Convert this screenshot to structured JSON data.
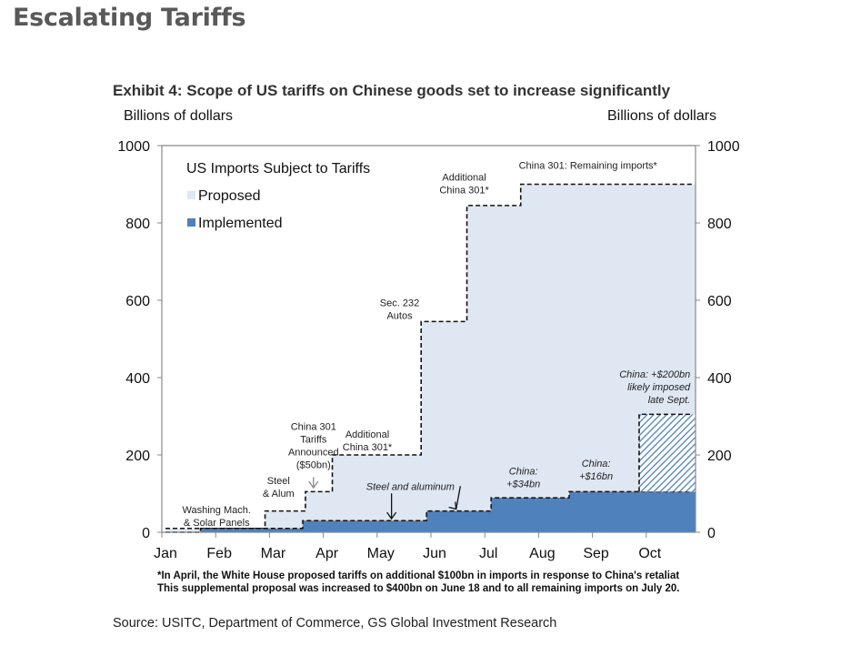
{
  "page": {
    "slide_title": "Escalating Tariffs",
    "footnote_line1": "*In  April, the White House proposed  tariffs on additional $100bn in imports in response to China's retaliat",
    "footnote_line2": "This supplemental proposal was increased to $400bn  on June 18 and to all remaining  imports on July 20.",
    "source": "Source: USITC, Department of Commerce, GS Global Investment Research"
  },
  "chart_data": {
    "type": "area",
    "title": "Exhibit 4: Scope of US tariffs on Chinese goods set to increase significantly",
    "ylabel_left": "Billions of dollars",
    "ylabel_right": "Billions of dollars",
    "xlabel": "",
    "ylim": [
      0,
      1000
    ],
    "yticks": [
      0,
      200,
      400,
      600,
      800,
      1000
    ],
    "x_ticks": [
      "Jan",
      "Feb",
      "Mar",
      "Apr",
      "May",
      "Jun",
      "Jul",
      "Aug",
      "Sep",
      "Oct"
    ],
    "x_range_months": [
      0,
      9.85
    ],
    "legend": {
      "title": "US Imports Subject to Tariffs",
      "position": "top-left",
      "entries": [
        {
          "name": "Proposed",
          "color": "#dfe7f2"
        },
        {
          "name": "Implemented",
          "color": "#4f81bd"
        }
      ]
    },
    "series": [
      {
        "name": "Proposed",
        "style": "dashed-step-outline-light-fill",
        "color": "#dfe7f2",
        "steps": [
          {
            "x": 0.0,
            "y": 10
          },
          {
            "x": 1.85,
            "y": 55
          },
          {
            "x": 2.6,
            "y": 105
          },
          {
            "x": 3.1,
            "y": 200
          },
          {
            "x": 4.75,
            "y": 545
          },
          {
            "x": 5.6,
            "y": 845
          },
          {
            "x": 6.6,
            "y": 900
          }
        ]
      },
      {
        "name": "Implemented",
        "style": "step-solid-fill",
        "color": "#4f81bd",
        "steps": [
          {
            "x": 0.0,
            "y": 0
          },
          {
            "x": 0.65,
            "y": 10
          },
          {
            "x": 2.55,
            "y": 30
          },
          {
            "x": 4.85,
            "y": 55
          },
          {
            "x": 6.05,
            "y": 89
          },
          {
            "x": 7.5,
            "y": 105
          }
        ]
      },
      {
        "name": "China: +$200bn likely imposed late Sept.",
        "style": "hatched",
        "color": "#4f81bd",
        "steps": [
          {
            "x": 8.8,
            "y": 305
          }
        ],
        "base": 105
      }
    ],
    "annotations": [
      {
        "text": [
          "Washing Mach.",
          "& Solar Panels"
        ],
        "style": "normal",
        "x": 0.95,
        "y": 50
      },
      {
        "text": [
          "Steel",
          "& Alum"
        ],
        "style": "normal",
        "x": 2.1,
        "y": 125
      },
      {
        "text": [
          "China 301",
          "Tariffs",
          "Announced",
          "($50bn)"
        ],
        "style": "normal",
        "x": 2.75,
        "y": 265,
        "arrow_to": {
          "x": 2.75,
          "y": 115
        }
      },
      {
        "text": [
          "Additional",
          "China 301*"
        ],
        "style": "normal",
        "x": 3.75,
        "y": 245
      },
      {
        "text": [
          "Sec. 232",
          "Autos"
        ],
        "style": "normal",
        "x": 4.35,
        "y": 585
      },
      {
        "text": [
          "Additional",
          "China 301*"
        ],
        "style": "normal",
        "x": 5.55,
        "y": 910
      },
      {
        "text": [
          "China 301: Remaining imports*"
        ],
        "style": "normal",
        "x": 7.85,
        "y": 940
      },
      {
        "text": [
          "Steel and aluminum"
        ],
        "style": "italic",
        "x": 4.55,
        "y": 110,
        "arrow_to": {
          "x": 4.2,
          "y": 35
        }
      },
      {
        "text": [
          "China:",
          "+$34bn"
        ],
        "style": "italic",
        "x": 6.65,
        "y": 150
      },
      {
        "text": [
          "China:",
          "+$16bn"
        ],
        "style": "italic",
        "x": 8.0,
        "y": 170
      },
      {
        "text": [
          "China:  +$200bn",
          "likely imposed",
          "late Sept."
        ],
        "style": "italic",
        "x": 9.75,
        "y": 400
      }
    ]
  }
}
